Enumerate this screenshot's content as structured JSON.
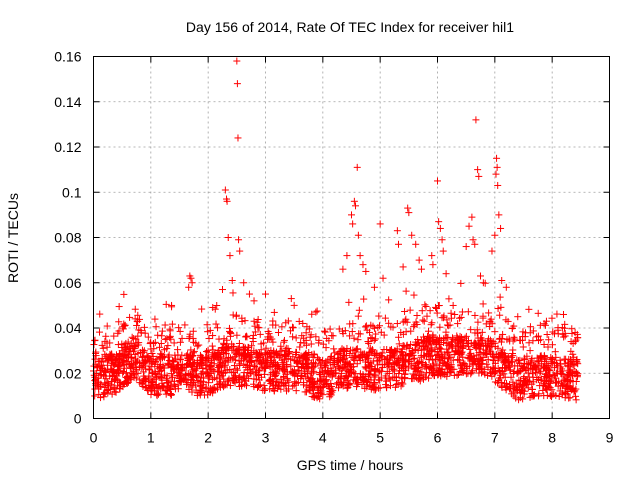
{
  "chart_data": {
    "type": "scatter",
    "title": "Day 156 of 2014, Rate Of TEC Index for receiver hil1",
    "xlabel": "GPS time / hours",
    "ylabel": "ROTI / TECUs",
    "xlim": [
      0,
      9
    ],
    "ylim": [
      0,
      0.16
    ],
    "xticks": [
      0,
      1,
      2,
      3,
      4,
      5,
      6,
      7,
      8,
      9
    ],
    "xtick_labels": [
      "0",
      "1",
      "2",
      "3",
      "4",
      "5",
      "6",
      "7",
      "8",
      "9"
    ],
    "yticks": [
      0,
      0.02,
      0.04,
      0.06,
      0.08,
      0.1,
      0.12,
      0.14,
      0.16
    ],
    "ytick_labels": [
      "0",
      "0.02",
      "0.04",
      "0.06",
      "0.08",
      "0.1",
      "0.12",
      "0.14",
      "0.16"
    ],
    "grid": true,
    "marker": "+",
    "color": "#ff0000",
    "series": [
      {
        "name": "hil1",
        "x_range": [
          0,
          8.45
        ],
        "baseline_profile": [
          [
            0.0,
            0.018
          ],
          [
            0.5,
            0.022
          ],
          [
            0.7,
            0.028
          ],
          [
            1.0,
            0.02
          ],
          [
            1.5,
            0.02
          ],
          [
            2.0,
            0.02
          ],
          [
            2.3,
            0.024
          ],
          [
            2.6,
            0.024
          ],
          [
            3.0,
            0.022
          ],
          [
            3.5,
            0.022
          ],
          [
            4.0,
            0.018
          ],
          [
            4.5,
            0.024
          ],
          [
            5.0,
            0.022
          ],
          [
            5.5,
            0.025
          ],
          [
            5.9,
            0.028
          ],
          [
            6.3,
            0.028
          ],
          [
            6.7,
            0.03
          ],
          [
            7.0,
            0.026
          ],
          [
            7.4,
            0.018
          ],
          [
            7.8,
            0.02
          ],
          [
            8.45,
            0.018
          ]
        ],
        "points": [
          [
            2.3,
            0.101
          ],
          [
            2.32,
            0.097
          ],
          [
            2.33,
            0.096
          ],
          [
            2.35,
            0.08
          ],
          [
            2.38,
            0.072
          ],
          [
            2.5,
            0.158
          ],
          [
            2.51,
            0.148
          ],
          [
            2.52,
            0.124
          ],
          [
            2.53,
            0.079
          ],
          [
            2.55,
            0.074
          ],
          [
            1.68,
            0.063
          ],
          [
            1.7,
            0.062
          ],
          [
            1.72,
            0.06
          ],
          [
            1.66,
            0.058
          ],
          [
            2.25,
            0.057
          ],
          [
            2.42,
            0.061
          ],
          [
            2.62,
            0.06
          ],
          [
            2.72,
            0.055
          ],
          [
            2.8,
            0.052
          ],
          [
            3.0,
            0.055
          ],
          [
            3.45,
            0.053
          ],
          [
            3.5,
            0.05
          ],
          [
            4.35,
            0.066
          ],
          [
            4.42,
            0.072
          ],
          [
            4.5,
            0.09
          ],
          [
            4.52,
            0.086
          ],
          [
            4.55,
            0.096
          ],
          [
            4.57,
            0.094
          ],
          [
            4.6,
            0.111
          ],
          [
            4.62,
            0.081
          ],
          [
            4.65,
            0.072
          ],
          [
            4.7,
            0.068
          ],
          [
            4.75,
            0.065
          ],
          [
            4.9,
            0.058
          ],
          [
            5.0,
            0.086
          ],
          [
            5.05,
            0.062
          ],
          [
            5.3,
            0.083
          ],
          [
            5.32,
            0.077
          ],
          [
            5.4,
            0.067
          ],
          [
            5.48,
            0.093
          ],
          [
            5.5,
            0.091
          ],
          [
            5.55,
            0.081
          ],
          [
            5.62,
            0.077
          ],
          [
            5.68,
            0.07
          ],
          [
            5.72,
            0.066
          ],
          [
            5.9,
            0.072
          ],
          [
            5.92,
            0.068
          ],
          [
            6.0,
            0.105
          ],
          [
            6.02,
            0.087
          ],
          [
            6.05,
            0.084
          ],
          [
            6.08,
            0.079
          ],
          [
            6.1,
            0.074
          ],
          [
            6.15,
            0.064
          ],
          [
            6.5,
            0.076
          ],
          [
            6.55,
            0.085
          ],
          [
            6.6,
            0.089
          ],
          [
            6.62,
            0.079
          ],
          [
            6.65,
            0.077
          ],
          [
            6.67,
            0.132
          ],
          [
            6.7,
            0.11
          ],
          [
            6.72,
            0.107
          ],
          [
            6.75,
            0.063
          ],
          [
            6.8,
            0.06
          ],
          [
            6.95,
            0.074
          ],
          [
            7.0,
            0.081
          ],
          [
            7.02,
            0.108
          ],
          [
            7.03,
            0.115
          ],
          [
            7.04,
            0.111
          ],
          [
            7.05,
            0.103
          ],
          [
            7.07,
            0.09
          ],
          [
            7.1,
            0.084
          ],
          [
            7.12,
            0.061
          ],
          [
            7.2,
            0.058
          ],
          [
            7.4,
            0.045
          ],
          [
            7.9,
            0.043
          ],
          [
            8.1,
            0.039
          ],
          [
            8.2,
            0.036
          ],
          [
            8.4,
            0.038
          ]
        ]
      }
    ]
  }
}
